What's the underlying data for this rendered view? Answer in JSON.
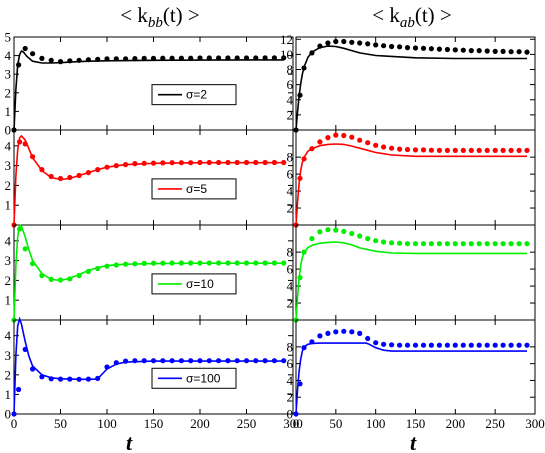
{
  "chart_data": {
    "type": "line",
    "columns": [
      {
        "title_main": "< k",
        "title_sub": "bb",
        "title_tail": "(t) >"
      },
      {
        "title_main": "< k",
        "title_sub": "ab",
        "title_tail": "(t) >"
      }
    ],
    "xlabel": "t",
    "xlim": [
      0,
      300
    ],
    "xticks": [
      0,
      50,
      100,
      150,
      200,
      250,
      300
    ],
    "rows": [
      {
        "legend": "σ=2",
        "color": "#000000"
      },
      {
        "legend": "σ=5",
        "color": "#ff0000"
      },
      {
        "legend": "σ=10",
        "color": "#00ee00"
      },
      {
        "legend": "σ=100",
        "color": "#0000ff"
      }
    ],
    "panels": [
      {
        "col": 0,
        "row": 0,
        "color": "#000000",
        "ylim": [
          0,
          5
        ],
        "yticks": [
          0,
          1,
          2,
          3,
          4,
          5
        ],
        "line": {
          "x": [
            0,
            2,
            4,
            6,
            8,
            10,
            14,
            20,
            30,
            40,
            50,
            60,
            80,
            100,
            150,
            200,
            250,
            290
          ],
          "y": [
            0,
            2.2,
            3.5,
            4.05,
            4.25,
            4.2,
            3.95,
            3.7,
            3.6,
            3.6,
            3.62,
            3.65,
            3.7,
            3.72,
            3.75,
            3.76,
            3.77,
            3.77
          ]
        },
        "points": {
          "x": [
            0,
            5,
            12,
            20,
            30,
            40,
            50,
            60,
            70,
            80,
            90,
            100,
            110,
            120,
            130,
            140,
            150,
            160,
            170,
            180,
            190,
            200,
            210,
            220,
            230,
            240,
            250,
            260,
            270,
            280,
            290
          ],
          "y": [
            0,
            3.5,
            4.38,
            4.1,
            3.85,
            3.75,
            3.68,
            3.72,
            3.75,
            3.78,
            3.8,
            3.82,
            3.83,
            3.83,
            3.84,
            3.85,
            3.85,
            3.86,
            3.86,
            3.86,
            3.86,
            3.87,
            3.87,
            3.87,
            3.87,
            3.87,
            3.87,
            3.87,
            3.88,
            3.88,
            3.88
          ]
        }
      },
      {
        "col": 0,
        "row": 1,
        "color": "#ff0000",
        "ylim": [
          0,
          4.8
        ],
        "yticks": [
          1,
          2,
          3,
          4
        ],
        "line": {
          "x": [
            0,
            2,
            4,
            6,
            8,
            12,
            16,
            20,
            30,
            40,
            50,
            60,
            70,
            80,
            90,
            100,
            120,
            150,
            200,
            250,
            290
          ],
          "y": [
            0,
            2.5,
            3.8,
            4.4,
            4.5,
            4.3,
            3.85,
            3.4,
            2.75,
            2.4,
            2.3,
            2.35,
            2.5,
            2.65,
            2.8,
            2.92,
            3.05,
            3.12,
            3.15,
            3.15,
            3.15
          ]
        },
        "points": {
          "x": [
            0,
            6,
            12,
            20,
            30,
            40,
            50,
            60,
            70,
            80,
            90,
            100,
            110,
            120,
            130,
            140,
            150,
            160,
            170,
            180,
            190,
            200,
            210,
            220,
            230,
            240,
            250,
            260,
            270,
            280,
            290
          ],
          "y": [
            0,
            4.2,
            4.1,
            3.45,
            2.8,
            2.45,
            2.35,
            2.4,
            2.5,
            2.65,
            2.8,
            2.92,
            3.0,
            3.05,
            3.1,
            3.12,
            3.13,
            3.14,
            3.15,
            3.15,
            3.15,
            3.16,
            3.16,
            3.16,
            3.16,
            3.16,
            3.16,
            3.16,
            3.16,
            3.16,
            3.16
          ]
        }
      },
      {
        "col": 0,
        "row": 2,
        "color": "#00ee00",
        "ylim": [
          0,
          4.8
        ],
        "yticks": [
          1,
          2,
          3,
          4
        ],
        "line": {
          "x": [
            0,
            2,
            4,
            6,
            8,
            12,
            16,
            20,
            30,
            40,
            50,
            60,
            70,
            80,
            90,
            100,
            120,
            150,
            200,
            250,
            290
          ],
          "y": [
            0,
            2.8,
            4.2,
            4.8,
            4.75,
            4.2,
            3.55,
            3.0,
            2.35,
            2.05,
            2.0,
            2.1,
            2.3,
            2.5,
            2.65,
            2.75,
            2.82,
            2.85,
            2.87,
            2.87,
            2.87
          ]
        },
        "points": {
          "x": [
            0,
            6,
            12,
            20,
            30,
            40,
            50,
            60,
            70,
            80,
            90,
            100,
            110,
            120,
            130,
            140,
            150,
            160,
            170,
            180,
            190,
            200,
            210,
            220,
            230,
            240,
            250,
            260,
            270,
            280,
            290
          ],
          "y": [
            0,
            4.6,
            3.6,
            2.85,
            2.25,
            2.05,
            2.02,
            2.08,
            2.25,
            2.45,
            2.6,
            2.72,
            2.78,
            2.82,
            2.84,
            2.86,
            2.87,
            2.87,
            2.88,
            2.88,
            2.88,
            2.88,
            2.88,
            2.88,
            2.88,
            2.88,
            2.88,
            2.88,
            2.88,
            2.88,
            2.88
          ]
        }
      },
      {
        "col": 0,
        "row": 3,
        "color": "#0000ff",
        "ylim": [
          0,
          4.8
        ],
        "yticks": [
          0,
          1,
          2,
          3,
          4
        ],
        "line": {
          "x": [
            0,
            2,
            4,
            6,
            8,
            12,
            16,
            20,
            30,
            40,
            50,
            60,
            70,
            80,
            88,
            92,
            100,
            110,
            120,
            150,
            200,
            250,
            290
          ],
          "y": [
            0,
            3.0,
            4.5,
            4.85,
            4.6,
            3.7,
            2.95,
            2.45,
            2.0,
            1.85,
            1.8,
            1.78,
            1.77,
            1.77,
            1.78,
            1.9,
            2.3,
            2.55,
            2.65,
            2.7,
            2.7,
            2.7,
            2.7
          ]
        },
        "points": {
          "x": [
            0,
            5,
            12,
            20,
            30,
            40,
            50,
            60,
            70,
            80,
            90,
            100,
            110,
            120,
            130,
            140,
            150,
            160,
            170,
            180,
            190,
            200,
            210,
            220,
            230,
            240,
            250,
            260,
            270,
            280,
            290
          ],
          "y": [
            0,
            1.25,
            3.3,
            2.3,
            1.9,
            1.8,
            1.78,
            1.78,
            1.77,
            1.78,
            1.82,
            2.4,
            2.62,
            2.7,
            2.72,
            2.72,
            2.72,
            2.72,
            2.72,
            2.72,
            2.72,
            2.72,
            2.72,
            2.72,
            2.72,
            2.72,
            2.72,
            2.72,
            2.72,
            2.72,
            2.72
          ]
        }
      },
      {
        "col": 1,
        "row": 0,
        "color": "#000000",
        "ylim": [
          0,
          12.3
        ],
        "yticks": [
          2,
          4,
          6,
          8,
          10,
          12
        ],
        "line": {
          "x": [
            0,
            2,
            4,
            6,
            8,
            10,
            15,
            20,
            30,
            40,
            50,
            60,
            70,
            80,
            100,
            150,
            200,
            250,
            290
          ],
          "y": [
            0,
            2.5,
            4.6,
            6.2,
            7.4,
            8.3,
            9.6,
            10.3,
            10.9,
            11.1,
            11.05,
            10.8,
            10.5,
            10.2,
            9.85,
            9.55,
            9.45,
            9.45,
            9.45
          ]
        },
        "points": {
          "x": [
            0,
            5,
            10,
            20,
            30,
            40,
            50,
            60,
            70,
            80,
            90,
            100,
            110,
            120,
            130,
            140,
            150,
            160,
            170,
            180,
            190,
            200,
            210,
            220,
            230,
            240,
            250,
            260,
            270,
            280,
            290
          ],
          "y": [
            0,
            4.6,
            8.2,
            10.2,
            11.1,
            11.5,
            11.7,
            11.7,
            11.6,
            11.5,
            11.4,
            11.25,
            11.15,
            11.05,
            11.0,
            10.9,
            10.85,
            10.8,
            10.75,
            10.7,
            10.65,
            10.6,
            10.55,
            10.5,
            10.5,
            10.45,
            10.4,
            10.4,
            10.35,
            10.35,
            10.3
          ]
        }
      },
      {
        "col": 1,
        "row": 1,
        "color": "#ff0000",
        "ylim": [
          0,
          11.2
        ],
        "yticks": [
          2,
          4,
          6,
          8
        ],
        "line": {
          "x": [
            0,
            2,
            4,
            6,
            8,
            10,
            15,
            20,
            30,
            40,
            50,
            60,
            70,
            80,
            100,
            120,
            150,
            200,
            250,
            290
          ],
          "y": [
            0,
            2.8,
            5.0,
            6.5,
            7.4,
            7.95,
            8.7,
            9.0,
            9.35,
            9.5,
            9.55,
            9.5,
            9.3,
            9.05,
            8.55,
            8.25,
            8.1,
            8.1,
            8.1,
            8.1
          ]
        },
        "points": {
          "x": [
            0,
            5,
            10,
            20,
            30,
            40,
            50,
            60,
            70,
            80,
            90,
            100,
            110,
            120,
            130,
            140,
            150,
            160,
            170,
            180,
            190,
            200,
            210,
            220,
            230,
            240,
            250,
            260,
            270,
            280,
            290
          ],
          "y": [
            0,
            5.5,
            7.8,
            9.0,
            9.8,
            10.3,
            10.6,
            10.55,
            10.35,
            10.0,
            9.7,
            9.4,
            9.2,
            9.05,
            8.95,
            8.9,
            8.85,
            8.85,
            8.82,
            8.8,
            8.8,
            8.8,
            8.8,
            8.8,
            8.8,
            8.8,
            8.8,
            8.8,
            8.8,
            8.8,
            8.8
          ]
        }
      },
      {
        "col": 1,
        "row": 2,
        "color": "#00ee00",
        "ylim": [
          0,
          11.2
        ],
        "yticks": [
          2,
          4,
          6,
          8
        ],
        "line": {
          "x": [
            0,
            2,
            4,
            6,
            8,
            10,
            15,
            20,
            30,
            40,
            50,
            60,
            70,
            80,
            100,
            120,
            150,
            200,
            250,
            290
          ],
          "y": [
            0,
            2.8,
            5.0,
            6.5,
            7.4,
            7.95,
            8.55,
            8.8,
            9.05,
            9.15,
            9.2,
            9.1,
            8.85,
            8.5,
            8.1,
            7.9,
            7.85,
            7.85,
            7.85,
            7.85
          ]
        },
        "points": {
          "x": [
            0,
            5,
            10,
            20,
            30,
            40,
            50,
            60,
            70,
            80,
            90,
            100,
            110,
            120,
            130,
            140,
            150,
            160,
            170,
            180,
            190,
            200,
            210,
            220,
            230,
            240,
            250,
            260,
            270,
            280,
            290
          ],
          "y": [
            0,
            5.0,
            8.0,
            9.6,
            10.4,
            10.65,
            10.6,
            10.45,
            10.2,
            9.9,
            9.6,
            9.35,
            9.2,
            9.1,
            9.05,
            9.0,
            9.0,
            9.0,
            9.0,
            9.0,
            9.0,
            9.0,
            9.0,
            9.0,
            9.0,
            9.0,
            9.0,
            9.0,
            9.0,
            9.0,
            9.0
          ]
        }
      },
      {
        "col": 1,
        "row": 3,
        "color": "#0000ff",
        "ylim": [
          0,
          11.2
        ],
        "yticks": [
          0,
          2,
          4,
          6,
          8
        ],
        "line": {
          "x": [
            0,
            2,
            4,
            6,
            8,
            10,
            15,
            20,
            30,
            40,
            50,
            60,
            70,
            80,
            88,
            92,
            100,
            110,
            120,
            150,
            200,
            250,
            290
          ],
          "y": [
            0,
            3.0,
            5.2,
            6.6,
            7.5,
            8.0,
            8.3,
            8.4,
            8.45,
            8.45,
            8.45,
            8.45,
            8.45,
            8.45,
            8.45,
            8.3,
            7.9,
            7.6,
            7.5,
            7.5,
            7.5,
            7.5,
            7.5
          ]
        },
        "points": {
          "x": [
            0,
            5,
            10,
            20,
            30,
            40,
            50,
            60,
            70,
            80,
            90,
            100,
            110,
            120,
            130,
            140,
            150,
            160,
            170,
            180,
            190,
            200,
            210,
            220,
            230,
            240,
            250,
            260,
            270,
            280,
            290
          ],
          "y": [
            0,
            3.6,
            7.9,
            8.6,
            9.3,
            9.6,
            9.8,
            9.85,
            9.8,
            9.6,
            9.0,
            8.5,
            8.3,
            8.25,
            8.2,
            8.2,
            8.2,
            8.2,
            8.2,
            8.2,
            8.2,
            8.2,
            8.2,
            8.2,
            8.2,
            8.2,
            8.2,
            8.2,
            8.2,
            8.2,
            8.2
          ]
        }
      }
    ]
  }
}
